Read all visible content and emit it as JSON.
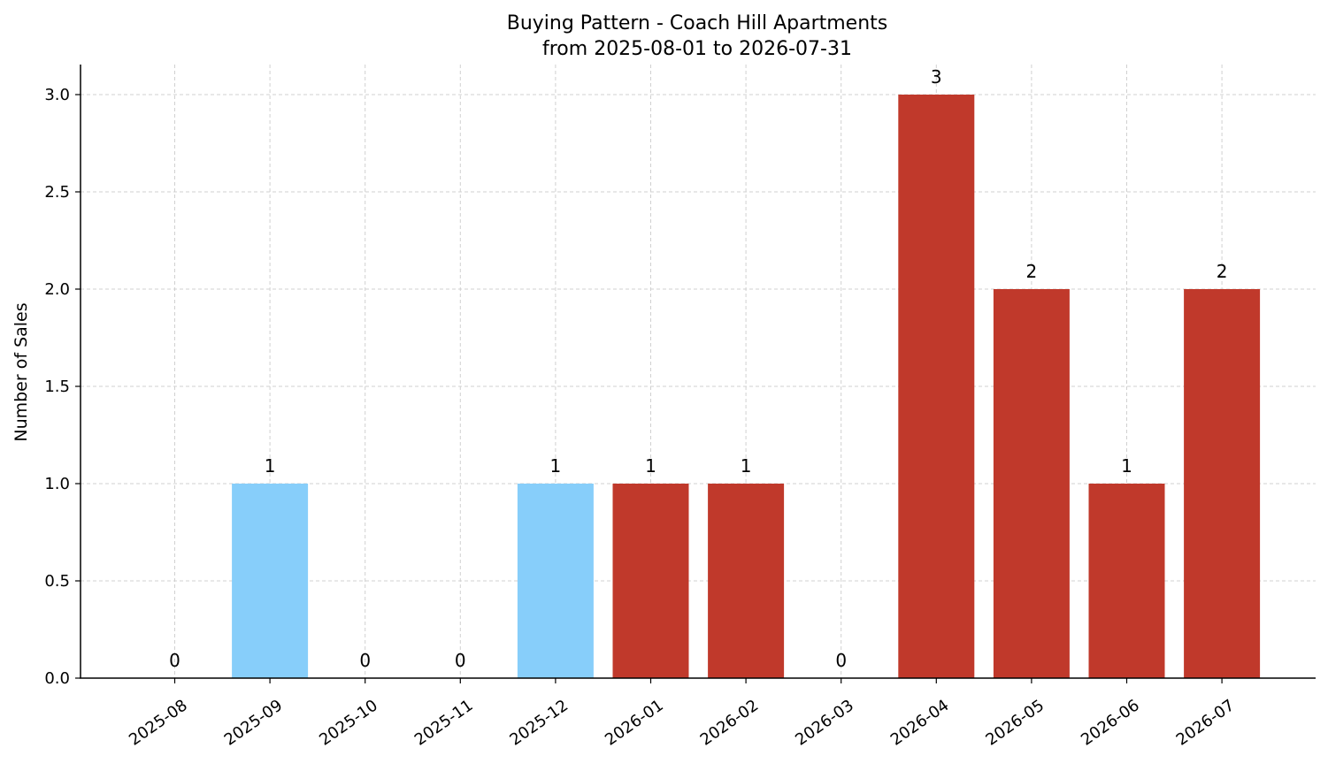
{
  "chart_data": {
    "type": "bar",
    "title": "Buying Pattern - Coach Hill Apartments",
    "subtitle": "from 2025-08-01 to 2026-07-31",
    "xlabel": "",
    "ylabel": "Number of Sales",
    "ylim": [
      0,
      3.15
    ],
    "yticks": [
      "0.0",
      "0.5",
      "1.0",
      "1.5",
      "2.0",
      "2.5",
      "3.0"
    ],
    "grid": true,
    "categories": [
      "2025-08",
      "2025-09",
      "2025-10",
      "2025-11",
      "2025-12",
      "2026-01",
      "2026-02",
      "2026-03",
      "2026-04",
      "2026-05",
      "2026-06",
      "2026-07"
    ],
    "values": [
      0,
      1,
      0,
      0,
      1,
      1,
      1,
      0,
      3,
      2,
      1,
      2
    ],
    "bar_colors": [
      "#87cefa",
      "#87cefa",
      "#87cefa",
      "#87cefa",
      "#87cefa",
      "#c0392b",
      "#c0392b",
      "#c0392b",
      "#c0392b",
      "#c0392b",
      "#c0392b",
      "#c0392b"
    ]
  }
}
